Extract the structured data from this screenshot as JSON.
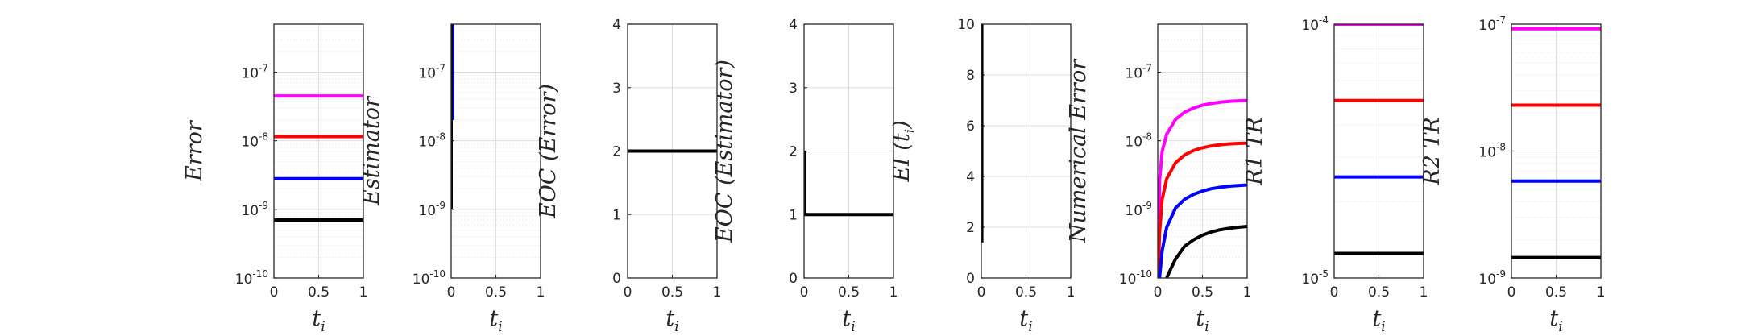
{
  "chart_data": [
    {
      "type": "line",
      "ylabel": "Error",
      "xlabel": "t",
      "xlabel_sub": "i",
      "yscale": "log",
      "ylim": [
        1e-10,
        5e-07
      ],
      "xlim": [
        0,
        1
      ],
      "x_ticks": [
        "0",
        "0.5",
        "1"
      ],
      "y_ticks": [
        {
          "v": 1e-10,
          "base": "10",
          "exp": "-10"
        },
        {
          "v": 1e-09,
          "base": "10",
          "exp": "-9"
        },
        {
          "v": 1e-08,
          "base": "10",
          "exp": "-8"
        },
        {
          "v": 1e-07,
          "base": "10",
          "exp": "-7"
        }
      ],
      "grid": true,
      "series": [
        {
          "color": "#ff00ff",
          "x": [
            0,
            1
          ],
          "y": [
            4.5e-08,
            4.5e-08
          ]
        },
        {
          "color": "#ff0000",
          "x": [
            0,
            1
          ],
          "y": [
            1.15e-08,
            1.15e-08
          ]
        },
        {
          "color": "#0000ff",
          "x": [
            0,
            1
          ],
          "y": [
            2.8e-09,
            2.8e-09
          ]
        },
        {
          "color": "#000000",
          "x": [
            0,
            1
          ],
          "y": [
            7e-10,
            7e-10
          ]
        }
      ]
    },
    {
      "type": "line",
      "ylabel": "Estimator",
      "xlabel": "t",
      "xlabel_sub": "i",
      "yscale": "log",
      "ylim": [
        1e-10,
        5e-07
      ],
      "xlim": [
        0,
        1
      ],
      "x_ticks": [
        "0",
        "0.5",
        "1"
      ],
      "y_ticks": [
        {
          "v": 1e-10,
          "base": "10",
          "exp": "-10"
        },
        {
          "v": 1e-09,
          "base": "10",
          "exp": "-9"
        },
        {
          "v": 1e-08,
          "base": "10",
          "exp": "-8"
        },
        {
          "v": 1e-07,
          "base": "10",
          "exp": "-7"
        }
      ],
      "grid": true,
      "series": [
        {
          "color": "#ff00ff",
          "x": [
            0.01,
            0.01
          ],
          "y": [
            5e-08,
            5e-07
          ]
        },
        {
          "color": "#0000ff",
          "x": [
            0.015,
            0.015
          ],
          "y": [
            2e-08,
            5e-07
          ]
        },
        {
          "color": "#000000",
          "x": [
            0,
            0,
            0.02
          ],
          "y": [
            1e-09,
            5e-07,
            5e-07
          ]
        }
      ]
    },
    {
      "type": "line",
      "ylabel": "EOC (Error)",
      "xlabel": "t",
      "xlabel_sub": "i",
      "yscale": "linear",
      "ylim": [
        0,
        4
      ],
      "xlim": [
        0,
        1
      ],
      "x_ticks": [
        "0",
        "0.5",
        "1"
      ],
      "y_ticks": [
        {
          "v": 0,
          "label": "0"
        },
        {
          "v": 1,
          "label": "1"
        },
        {
          "v": 2,
          "label": "2"
        },
        {
          "v": 3,
          "label": "3"
        },
        {
          "v": 4,
          "label": "4"
        }
      ],
      "grid": true,
      "series": [
        {
          "color": "#000000",
          "x": [
            0,
            1
          ],
          "y": [
            2,
            2
          ]
        }
      ]
    },
    {
      "type": "line",
      "ylabel": "EOC (Estimator)",
      "xlabel": "t",
      "xlabel_sub": "i",
      "yscale": "linear",
      "ylim": [
        0,
        4
      ],
      "xlim": [
        0,
        1
      ],
      "x_ticks": [
        "0",
        "0.5",
        "1"
      ],
      "y_ticks": [
        {
          "v": 0,
          "label": "0"
        },
        {
          "v": 1,
          "label": "1"
        },
        {
          "v": 2,
          "label": "2"
        },
        {
          "v": 3,
          "label": "3"
        },
        {
          "v": 4,
          "label": "4"
        }
      ],
      "grid": true,
      "series": [
        {
          "color": "#000000",
          "x": [
            0.005,
            0.005,
            1
          ],
          "y": [
            2,
            1,
            1
          ]
        }
      ]
    },
    {
      "type": "line",
      "ylabel": "EI (t",
      "ylabel_sub": "i",
      "ylabel_end": ")",
      "xlabel": "t",
      "xlabel_sub": "i",
      "yscale": "linear",
      "ylim": [
        0,
        10
      ],
      "xlim": [
        0,
        1
      ],
      "x_ticks": [
        "0",
        "0.5",
        "1"
      ],
      "y_ticks": [
        {
          "v": 0,
          "label": "0"
        },
        {
          "v": 2,
          "label": "2"
        },
        {
          "v": 4,
          "label": "4"
        },
        {
          "v": 6,
          "label": "6"
        },
        {
          "v": 8,
          "label": "8"
        },
        {
          "v": 10,
          "label": "10"
        }
      ],
      "grid": true,
      "series": [
        {
          "color": "#000000",
          "x": [
            0.005,
            0.005
          ],
          "y": [
            1.4,
            10
          ]
        }
      ]
    },
    {
      "type": "line",
      "ylabel": "Numerical Error",
      "xlabel": "t",
      "xlabel_sub": "i",
      "yscale": "log",
      "ylim": [
        1e-10,
        5e-07
      ],
      "xlim": [
        0,
        1
      ],
      "x_ticks": [
        "0",
        "0.5",
        "1"
      ],
      "y_ticks": [
        {
          "v": 1e-10,
          "base": "10",
          "exp": "-10"
        },
        {
          "v": 1e-09,
          "base": "10",
          "exp": "-9"
        },
        {
          "v": 1e-08,
          "base": "10",
          "exp": "-8"
        },
        {
          "v": 1e-07,
          "base": "10",
          "exp": "-7"
        }
      ],
      "grid": true,
      "series": [
        {
          "color": "#ff00ff",
          "x": [
            0.005,
            0.02,
            0.05,
            0.1,
            0.2,
            0.3,
            0.4,
            0.5,
            0.6,
            0.7,
            0.8,
            0.9,
            1
          ],
          "y": [
            1e-10,
            2.6e-09,
            7e-09,
            1.25e-08,
            2.05e-08,
            2.6e-08,
            3e-08,
            3.3e-08,
            3.5e-08,
            3.65e-08,
            3.75e-08,
            3.82e-08,
            3.86e-08
          ]
        },
        {
          "color": "#ff0000",
          "x": [
            0.005,
            0.02,
            0.05,
            0.1,
            0.2,
            0.3,
            0.4,
            0.5,
            0.6,
            0.7,
            0.8,
            0.9,
            1
          ],
          "y": [
            1e-10,
            4.5e-10,
            1.4e-09,
            2.8e-09,
            4.8e-09,
            6.2e-09,
            7.2e-09,
            7.9e-09,
            8.4e-09,
            8.75e-09,
            9e-09,
            9.15e-09,
            9.25e-09
          ]
        },
        {
          "color": "#0000ff",
          "x": [
            0.02,
            0.05,
            0.1,
            0.2,
            0.3,
            0.4,
            0.5,
            0.6,
            0.7,
            0.8,
            0.9,
            1
          ],
          "y": [
            1e-10,
            2.5e-10,
            5.5e-10,
            1.05e-09,
            1.4e-09,
            1.65e-09,
            1.85e-09,
            2e-09,
            2.1e-09,
            2.18e-09,
            2.23e-09,
            2.27e-09
          ]
        },
        {
          "color": "#000000",
          "x": [
            0.1,
            0.15,
            0.2,
            0.3,
            0.4,
            0.5,
            0.6,
            0.7,
            0.8,
            0.9,
            1
          ],
          "y": [
            1e-10,
            1.4e-10,
            1.9e-10,
            2.9e-10,
            3.6e-10,
            4.2e-10,
            4.7e-10,
            5.05e-10,
            5.3e-10,
            5.5e-10,
            5.65e-10
          ]
        }
      ]
    },
    {
      "type": "line",
      "ylabel": "R1 TR",
      "xlabel": "t",
      "xlabel_sub": "i",
      "yscale": "log",
      "ylim": [
        1e-05,
        0.0001
      ],
      "xlim": [
        0,
        1
      ],
      "x_ticks": [
        "0",
        "0.5",
        "1"
      ],
      "y_ticks": [
        {
          "v": 1e-05,
          "base": "10",
          "exp": "-5"
        },
        {
          "v": 0.0001,
          "base": "10",
          "exp": "-4"
        }
      ],
      "grid": true,
      "series": [
        {
          "color": "#ff00ff",
          "x": [
            0,
            1
          ],
          "y": [
            0.0001,
            0.0001
          ]
        },
        {
          "color": "#ff0000",
          "x": [
            0,
            1
          ],
          "y": [
            5e-05,
            5e-05
          ]
        },
        {
          "color": "#0000ff",
          "x": [
            0,
            1
          ],
          "y": [
            2.5e-05,
            2.5e-05
          ]
        },
        {
          "color": "#000000",
          "x": [
            0,
            1
          ],
          "y": [
            1.25e-05,
            1.25e-05
          ]
        }
      ]
    },
    {
      "type": "line",
      "ylabel": "R2 TR",
      "xlabel": "t",
      "xlabel_sub": "i",
      "yscale": "log",
      "ylim": [
        1e-09,
        1e-07
      ],
      "xlim": [
        0,
        1
      ],
      "x_ticks": [
        "0",
        "0.5",
        "1"
      ],
      "y_ticks": [
        {
          "v": 1e-09,
          "base": "10",
          "exp": "-9"
        },
        {
          "v": 1e-08,
          "base": "10",
          "exp": "-8"
        },
        {
          "v": 1e-07,
          "base": "10",
          "exp": "-7"
        }
      ],
      "grid": true,
      "series": [
        {
          "color": "#ff00ff",
          "x": [
            0,
            1
          ],
          "y": [
            9.2e-08,
            9.2e-08
          ]
        },
        {
          "color": "#ff0000",
          "x": [
            0,
            1
          ],
          "y": [
            2.3e-08,
            2.3e-08
          ]
        },
        {
          "color": "#0000ff",
          "x": [
            0,
            1
          ],
          "y": [
            5.8e-09,
            5.8e-09
          ]
        },
        {
          "color": "#000000",
          "x": [
            0,
            1
          ],
          "y": [
            1.45e-09,
            1.45e-09
          ]
        }
      ]
    }
  ]
}
